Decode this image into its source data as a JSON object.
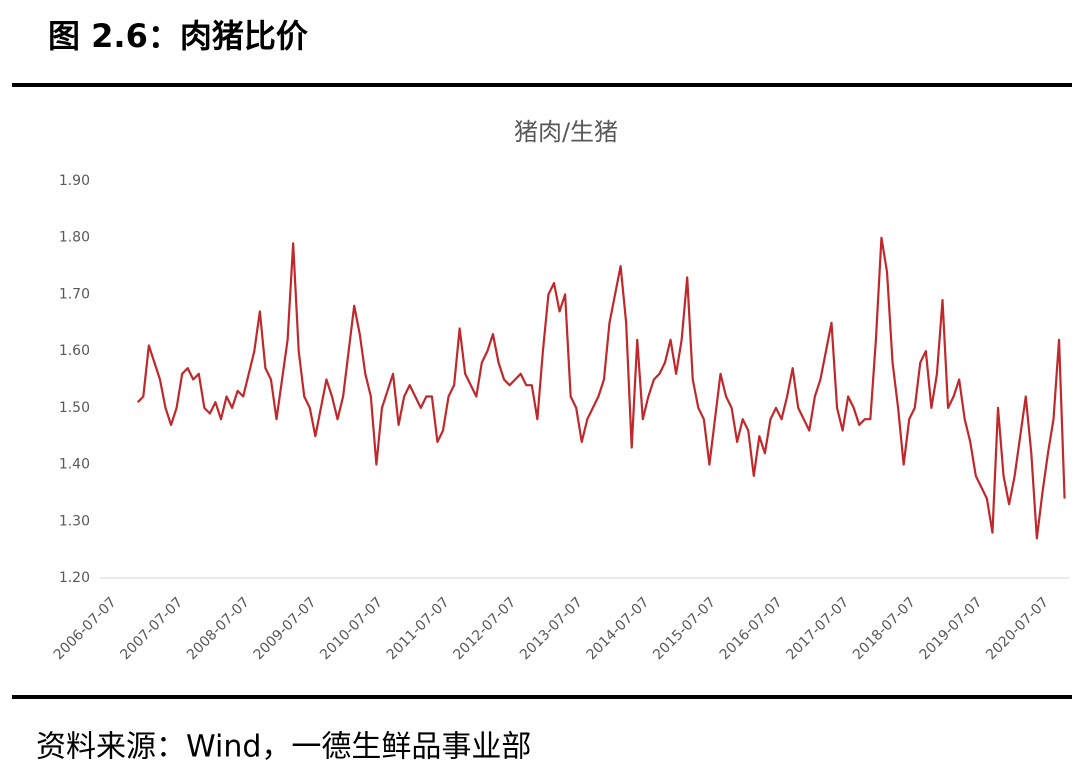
{
  "header": {
    "title": "图 2.6：肉猪比价"
  },
  "chart_data": {
    "type": "line",
    "title": "猪肉/生猪",
    "categories": [
      "2006-07-07",
      null,
      null,
      null,
      null,
      null,
      null,
      null,
      null,
      null,
      null,
      null,
      "2007-07-07",
      null,
      null,
      null,
      null,
      null,
      null,
      null,
      null,
      null,
      null,
      null,
      "2008-07-07",
      null,
      null,
      null,
      null,
      null,
      null,
      null,
      null,
      null,
      null,
      null,
      "2009-07-07",
      null,
      null,
      null,
      null,
      null,
      null,
      null,
      null,
      null,
      null,
      null,
      "2010-07-07",
      null,
      null,
      null,
      null,
      null,
      null,
      null,
      null,
      null,
      null,
      null,
      "2011-07-07",
      null,
      null,
      null,
      null,
      null,
      null,
      null,
      null,
      null,
      null,
      null,
      "2012-07-07",
      null,
      null,
      null,
      null,
      null,
      null,
      null,
      null,
      null,
      null,
      null,
      "2013-07-07",
      null,
      null,
      null,
      null,
      null,
      null,
      null,
      null,
      null,
      null,
      null,
      "2014-07-07",
      null,
      null,
      null,
      null,
      null,
      null,
      null,
      null,
      null,
      null,
      null,
      "2015-07-07",
      null,
      null,
      null,
      null,
      null,
      null,
      null,
      null,
      null,
      null,
      null,
      "2016-07-07",
      null,
      null,
      null,
      null,
      null,
      null,
      null,
      null,
      null,
      null,
      null,
      "2017-07-07",
      null,
      null,
      null,
      null,
      null,
      null,
      null,
      null,
      null,
      null,
      null,
      "2018-07-07",
      null,
      null,
      null,
      null,
      null,
      null,
      null,
      null,
      null,
      null,
      null,
      "2019-07-07",
      null,
      null,
      null,
      null,
      null,
      null,
      null,
      null,
      null,
      null,
      null,
      "2020-07-07",
      null,
      null,
      null,
      null
    ],
    "series": [
      {
        "color": "#c0282b",
        "values": [
          null,
          null,
          null,
          null,
          null,
          1.51,
          1.52,
          1.61,
          1.58,
          1.55,
          1.5,
          1.47,
          1.5,
          1.56,
          1.57,
          1.55,
          1.56,
          1.5,
          1.49,
          1.51,
          1.48,
          1.52,
          1.5,
          1.53,
          1.52,
          1.56,
          1.6,
          1.67,
          1.57,
          1.55,
          1.48,
          1.55,
          1.62,
          1.79,
          1.6,
          1.52,
          1.5,
          1.45,
          1.5,
          1.55,
          1.52,
          1.48,
          1.52,
          1.6,
          1.68,
          1.63,
          1.56,
          1.52,
          1.4,
          1.5,
          1.53,
          1.56,
          1.47,
          1.52,
          1.54,
          1.52,
          1.5,
          1.52,
          1.52,
          1.44,
          1.46,
          1.52,
          1.54,
          1.64,
          1.56,
          1.54,
          1.52,
          1.58,
          1.6,
          1.63,
          1.58,
          1.55,
          1.54,
          1.55,
          1.56,
          1.54,
          1.54,
          1.48,
          1.6,
          1.7,
          1.72,
          1.67,
          1.7,
          1.52,
          1.5,
          1.44,
          1.48,
          1.5,
          1.52,
          1.55,
          1.65,
          1.7,
          1.75,
          1.65,
          1.43,
          1.62,
          1.48,
          1.52,
          1.55,
          1.56,
          1.58,
          1.62,
          1.56,
          1.62,
          1.73,
          1.55,
          1.5,
          1.48,
          1.4,
          1.48,
          1.56,
          1.52,
          1.5,
          1.44,
          1.48,
          1.46,
          1.38,
          1.45,
          1.42,
          1.48,
          1.5,
          1.48,
          1.52,
          1.57,
          1.5,
          1.48,
          1.46,
          1.52,
          1.55,
          1.6,
          1.65,
          1.5,
          1.46,
          1.52,
          1.5,
          1.47,
          1.48,
          1.48,
          1.62,
          1.8,
          1.74,
          1.58,
          1.5,
          1.4,
          1.48,
          1.5,
          1.58,
          1.6,
          1.5,
          1.56,
          1.69,
          1.5,
          1.52,
          1.55,
          1.48,
          1.44,
          1.38,
          1.36,
          1.34,
          1.28,
          1.5,
          1.38,
          1.33,
          1.38,
          1.45,
          1.52,
          1.42,
          1.27,
          1.35,
          1.42,
          1.48,
          1.62,
          1.34
        ]
      }
    ],
    "ylim": [
      1.2,
      1.9
    ],
    "yticks": [
      {
        "value": 1.2,
        "label": "1.20"
      },
      {
        "value": 1.3,
        "label": "1.30"
      },
      {
        "value": 1.4,
        "label": "1.40"
      },
      {
        "value": 1.5,
        "label": "1.50"
      },
      {
        "value": 1.6,
        "label": "1.60"
      },
      {
        "value": 1.7,
        "label": "1.70"
      },
      {
        "value": 1.8,
        "label": "1.80"
      },
      {
        "value": 1.9,
        "label": "1.90"
      }
    ],
    "grid": false
  },
  "footer": {
    "source": "资料来源：Wind，一德生鲜品事业部"
  }
}
